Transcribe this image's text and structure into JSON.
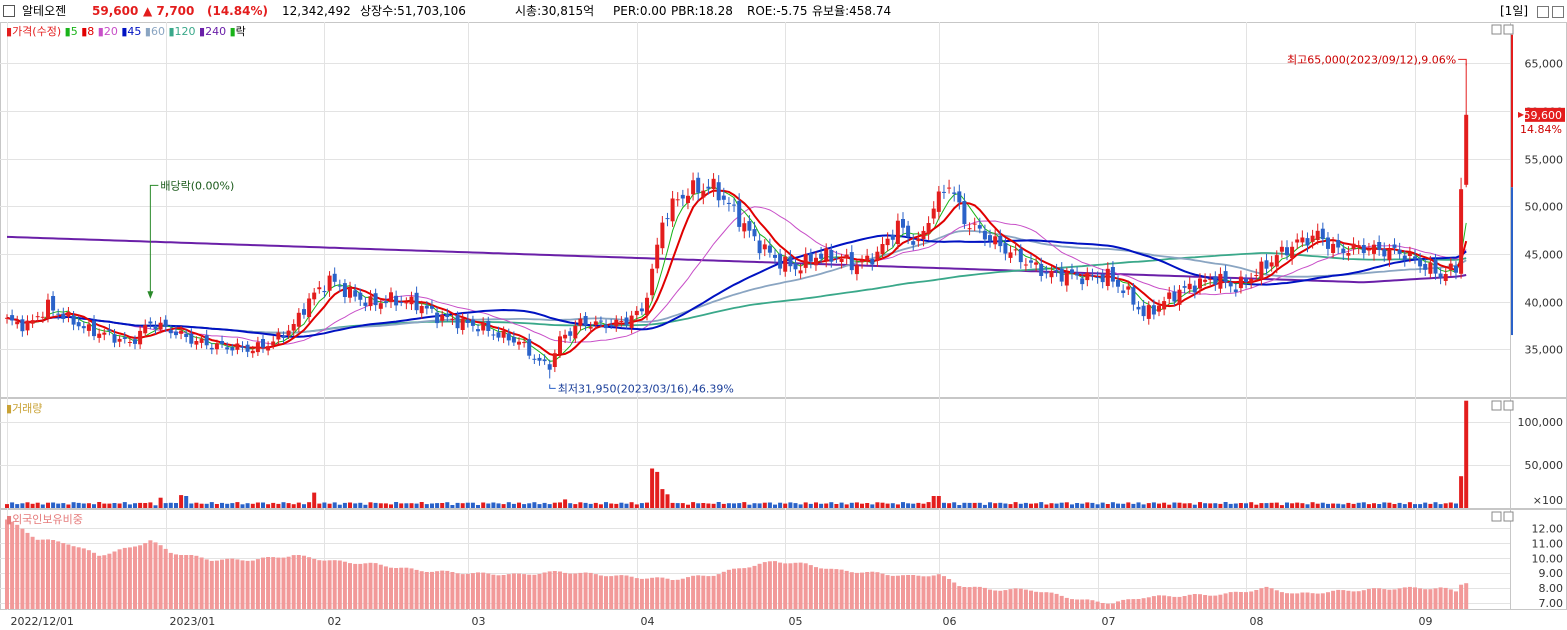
{
  "header": {
    "name": "알테오젠",
    "price": "59,600",
    "change": "▲ 7,700",
    "change_pct": "(14.84%)",
    "volume": "12,342,492",
    "listed": "상장수:51,703,106",
    "market_cap": "시총:30,815억",
    "per": "PER:0.00",
    "pbr": "PBR:18.28",
    "roe": "ROE:-5.75",
    "turnover": "유보율:458.74",
    "period": "[1일]"
  },
  "legend": {
    "price_label": "가격(수정)",
    "ma": [
      "5",
      "8",
      "20",
      "45",
      "60",
      "120",
      "240"
    ],
    "rak": "락",
    "volume_label": "거래량",
    "foreign_label": "외국인보유비중"
  },
  "annotations": {
    "high": "최고65,000(2023/09/12),9.06%",
    "low": "최저31,950(2023/03/16),46.39%",
    "dividend": "배당락(0.00%)",
    "last_price": "59,600",
    "last_pct": "14.84%"
  },
  "colors": {
    "up": "#e31d1d",
    "down": "#2a62c9",
    "ma5": "#19b319",
    "ma8": "#e00000",
    "ma20": "#c84fc8",
    "ma45": "#0012c2",
    "ma60": "#8aa5c2",
    "ma120": "#3aa88a",
    "ma240": "#6a1fa8",
    "foreign": "#f29999"
  },
  "chart_data": [
    {
      "type": "candlestick",
      "title": "가격(수정)",
      "x_ticks": [
        "2022/12/01",
        "2023/01",
        "02",
        "03",
        "04",
        "05",
        "06",
        "07",
        "08",
        "09"
      ],
      "y_ticks": [
        35000,
        40000,
        45000,
        50000,
        55000,
        60000,
        65000
      ],
      "ylim": [
        30000,
        68500
      ],
      "grid": true,
      "legend": "top-left",
      "series": [
        {
          "name": "price",
          "keyframes": [
            [
              0,
              38000
            ],
            [
              4,
              37500
            ],
            [
              8,
              39500
            ],
            [
              12,
              38200
            ],
            [
              16,
              37000
            ],
            [
              20,
              36500
            ],
            [
              24,
              35600
            ],
            [
              28,
              37800
            ],
            [
              32,
              37000
            ],
            [
              36,
              36000
            ],
            [
              40,
              35400
            ],
            [
              44,
              35200
            ],
            [
              48,
              35000
            ],
            [
              52,
              35800
            ],
            [
              56,
              37500
            ],
            [
              59,
              40200
            ],
            [
              63,
              42300
            ],
            [
              67,
              40800
            ],
            [
              71,
              39800
            ],
            [
              75,
              40200
            ],
            [
              80,
              39800
            ],
            [
              84,
              38500
            ],
            [
              88,
              37900
            ],
            [
              92,
              37400
            ],
            [
              96,
              36500
            ],
            [
              100,
              35800
            ],
            [
              104,
              33600
            ],
            [
              106,
              33300
            ],
            [
              108,
              36000
            ],
            [
              112,
              37800
            ],
            [
              116,
              37600
            ],
            [
              120,
              37800
            ],
            [
              124,
              39000
            ],
            [
              126,
              43000
            ],
            [
              128,
              48500
            ],
            [
              131,
              50800
            ],
            [
              134,
              51800
            ],
            [
              138,
              52000
            ],
            [
              142,
              49500
            ],
            [
              146,
              46500
            ],
            [
              150,
              44500
            ],
            [
              154,
              43500
            ],
            [
              158,
              44800
            ],
            [
              162,
              44700
            ],
            [
              166,
              43800
            ],
            [
              170,
              45000
            ],
            [
              174,
              48000
            ],
            [
              178,
              46000
            ],
            [
              181,
              50000
            ],
            [
              184,
              52500
            ],
            [
              187,
              48500
            ],
            [
              191,
              47000
            ],
            [
              195,
              45500
            ],
            [
              199,
              44200
            ],
            [
              203,
              43000
            ],
            [
              207,
              42800
            ],
            [
              211,
              42500
            ],
            [
              215,
              42700
            ],
            [
              219,
              40800
            ],
            [
              222,
              38600
            ],
            [
              225,
              39600
            ],
            [
              228,
              40800
            ],
            [
              232,
              41800
            ],
            [
              236,
              42500
            ],
            [
              240,
              41500
            ],
            [
              244,
              43000
            ],
            [
              248,
              44800
            ],
            [
              252,
              46200
            ],
            [
              256,
              47000
            ],
            [
              260,
              45300
            ],
            [
              264,
              45700
            ],
            [
              268,
              45400
            ],
            [
              272,
              45200
            ],
            [
              276,
              44000
            ],
            [
              280,
              42800
            ],
            [
              283,
              43500
            ],
            [
              284,
              51800
            ],
            [
              285,
              59600
            ]
          ]
        }
      ],
      "high": 65000,
      "low": 31950,
      "last": 59600
    },
    {
      "type": "bar",
      "title": "거래량",
      "y_ticks": [
        "×100",
        "50,000",
        "100,000"
      ],
      "y_tick_values": [
        0,
        50000,
        100000
      ],
      "ylim": [
        0,
        120000
      ],
      "spikes": [
        [
          284,
          37000
        ],
        [
          285,
          125000
        ],
        [
          126,
          46000
        ],
        [
          127,
          42000
        ],
        [
          128,
          22000
        ],
        [
          129,
          16000
        ],
        [
          30,
          12000
        ],
        [
          34,
          15000
        ],
        [
          35,
          14000
        ],
        [
          60,
          18000
        ],
        [
          181,
          14000
        ],
        [
          182,
          14000
        ],
        [
          109,
          10000
        ],
        [
          260,
          5000
        ],
        [
          275,
          4500
        ]
      ]
    },
    {
      "type": "bar",
      "title": "외국인보유비중",
      "y_ticks": [
        "7.00",
        "8.00",
        "9.00",
        "10.00",
        "11.00",
        "12.00"
      ],
      "y_tick_values": [
        7,
        8,
        9,
        10,
        11,
        12
      ],
      "ylim": [
        6.6,
        12.9
      ],
      "keyframes": [
        [
          0,
          12.6
        ],
        [
          6,
          11.3
        ],
        [
          12,
          11.0
        ],
        [
          18,
          10.2
        ],
        [
          24,
          10.7
        ],
        [
          28,
          11.2
        ],
        [
          32,
          10.4
        ],
        [
          40,
          9.9
        ],
        [
          48,
          9.9
        ],
        [
          56,
          10.2
        ],
        [
          64,
          9.8
        ],
        [
          72,
          9.6
        ],
        [
          80,
          9.2
        ],
        [
          90,
          9.0
        ],
        [
          100,
          8.9
        ],
        [
          108,
          9.1
        ],
        [
          116,
          8.9
        ],
        [
          124,
          8.7
        ],
        [
          130,
          8.6
        ],
        [
          138,
          8.9
        ],
        [
          144,
          9.4
        ],
        [
          150,
          9.8
        ],
        [
          156,
          9.6
        ],
        [
          162,
          9.2
        ],
        [
          170,
          9.0
        ],
        [
          176,
          8.8
        ],
        [
          182,
          8.9
        ],
        [
          186,
          8.2
        ],
        [
          192,
          7.9
        ],
        [
          200,
          7.9
        ],
        [
          210,
          7.2
        ],
        [
          216,
          7.0
        ],
        [
          222,
          7.4
        ],
        [
          230,
          7.5
        ],
        [
          238,
          7.6
        ],
        [
          246,
          8.0
        ],
        [
          252,
          7.6
        ],
        [
          260,
          7.8
        ],
        [
          266,
          7.9
        ],
        [
          272,
          8.0
        ],
        [
          280,
          8.0
        ],
        [
          283,
          7.8
        ],
        [
          284,
          8.3
        ],
        [
          285,
          8.4
        ]
      ]
    }
  ]
}
